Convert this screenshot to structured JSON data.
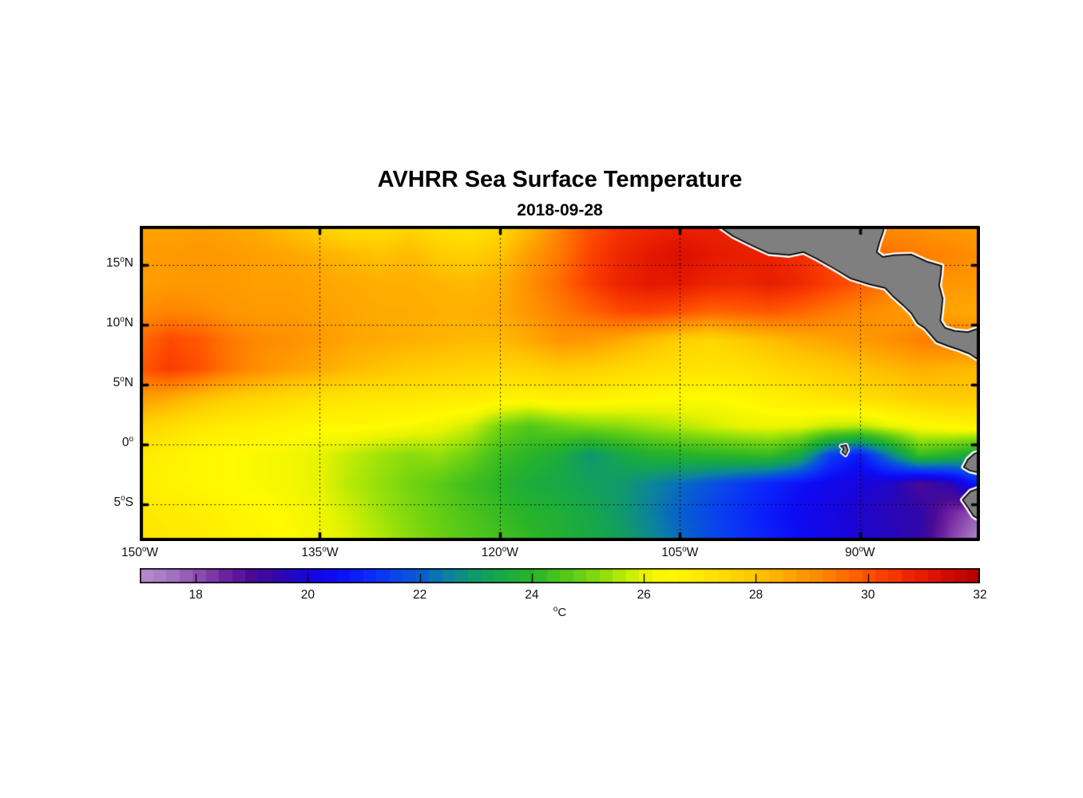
{
  "figure": {
    "title": "AVHRR Sea Surface Temperature",
    "subtitle": "2018-09-28"
  },
  "chart_data": {
    "type": "heatmap",
    "title": "AVHRR Sea Surface Temperature",
    "subtitle": "2018-09-28",
    "x_axis": {
      "range_lonW": [
        150,
        80
      ],
      "ticks": [
        {
          "deg": "150",
          "hem": "W",
          "lonW": 150
        },
        {
          "deg": "135",
          "hem": "W",
          "lonW": 135
        },
        {
          "deg": "120",
          "hem": "W",
          "lonW": 120
        },
        {
          "deg": "105",
          "hem": "W",
          "lonW": 105
        },
        {
          "deg": "90",
          "hem": "W",
          "lonW": 90
        }
      ]
    },
    "y_axis": {
      "range_lat": [
        -8.1,
        18.3
      ],
      "ticks": [
        {
          "deg": "15",
          "hem": "N",
          "lat": 15
        },
        {
          "deg": "10",
          "hem": "N",
          "lat": 10
        },
        {
          "deg": "5",
          "hem": "N",
          "lat": 5
        },
        {
          "deg": "0",
          "hem": "",
          "lat": 0
        },
        {
          "deg": "5",
          "hem": "S",
          "lat": -5
        }
      ]
    },
    "gridlines": {
      "lonW": [
        135,
        120,
        105,
        90
      ],
      "lat": [
        15,
        10,
        5,
        0,
        -5
      ]
    },
    "colorbar": {
      "min": 17,
      "max": 32,
      "levels": 64,
      "tick_values": [
        18,
        20,
        22,
        24,
        26,
        28,
        30,
        32
      ],
      "unit_sup": "o",
      "unit": "C",
      "stops": [
        [
          17.0,
          "#b78fce"
        ],
        [
          17.5,
          "#a678c4"
        ],
        [
          18.0,
          "#8e50b0"
        ],
        [
          18.5,
          "#6f22a0"
        ],
        [
          19.0,
          "#4a0a96"
        ],
        [
          19.5,
          "#2e07ae"
        ],
        [
          20.0,
          "#1805dc"
        ],
        [
          20.5,
          "#0d0bf4"
        ],
        [
          21.0,
          "#0a24fa"
        ],
        [
          21.5,
          "#0940f0"
        ],
        [
          22.0,
          "#085ed0"
        ],
        [
          22.5,
          "#0c82a0"
        ],
        [
          23.0,
          "#109a6a"
        ],
        [
          23.5,
          "#18aa42"
        ],
        [
          24.0,
          "#2ab428"
        ],
        [
          24.5,
          "#4cc41c"
        ],
        [
          25.0,
          "#74d410"
        ],
        [
          25.5,
          "#aae608"
        ],
        [
          26.0,
          "#e8f400"
        ],
        [
          26.4,
          "#fffa00"
        ],
        [
          27.0,
          "#ffe800"
        ],
        [
          27.5,
          "#ffd800"
        ],
        [
          28.0,
          "#ffc400"
        ],
        [
          28.5,
          "#ffaa00"
        ],
        [
          29.0,
          "#ff9000"
        ],
        [
          29.5,
          "#ff7200"
        ],
        [
          30.0,
          "#ff5000"
        ],
        [
          30.5,
          "#f53200"
        ],
        [
          31.0,
          "#e41800"
        ],
        [
          31.5,
          "#cc0800"
        ],
        [
          32.0,
          "#b20000"
        ]
      ]
    },
    "sst": {
      "units": "degC",
      "lonW_start": 150,
      "lonW_step": 2.5,
      "lat_start": 18.3,
      "lat_step": -2.4,
      "values": [
        [
          28.6,
          28.6,
          28.7,
          28.6,
          28.4,
          28.0,
          27.6,
          27.2,
          27.2,
          27.5,
          27.2,
          27.0,
          27.4,
          28.2,
          29.2,
          30.0,
          30.5,
          30.7,
          30.8,
          30.8,
          30.7,
          30.6,
          30.4,
          29.6,
          29.2,
          29.0,
          29.0,
          28.8,
          28.7
        ],
        [
          28.8,
          28.8,
          28.9,
          28.8,
          28.7,
          28.6,
          28.4,
          28.2,
          28.0,
          28.2,
          27.8,
          27.7,
          28.0,
          28.8,
          29.4,
          30.2,
          30.7,
          31.0,
          31.2,
          31.0,
          30.9,
          30.8,
          30.6,
          30.2,
          29.8,
          29.5,
          29.3,
          29.2,
          29.0
        ],
        [
          28.7,
          28.8,
          28.8,
          28.8,
          28.7,
          28.7,
          28.6,
          28.5,
          28.4,
          28.4,
          28.3,
          28.2,
          28.4,
          29.0,
          29.6,
          30.3,
          30.8,
          31.0,
          31.0,
          30.8,
          30.7,
          30.9,
          30.7,
          30.3,
          29.9,
          29.4,
          29.0,
          28.9,
          28.8
        ],
        [
          29.0,
          29.2,
          29.1,
          28.9,
          28.8,
          28.8,
          28.7,
          28.6,
          28.5,
          28.5,
          28.4,
          28.4,
          28.5,
          28.9,
          29.3,
          29.7,
          30.1,
          30.2,
          30.0,
          29.7,
          29.8,
          29.9,
          29.7,
          29.4,
          29.1,
          28.9,
          28.7,
          28.6,
          28.5
        ],
        [
          29.6,
          30.1,
          29.9,
          29.4,
          29.1,
          29.0,
          28.8,
          28.6,
          28.5,
          28.4,
          28.3,
          28.2,
          28.2,
          28.5,
          28.9,
          28.8,
          28.5,
          28.1,
          27.7,
          27.5,
          27.8,
          28.1,
          28.4,
          28.6,
          28.8,
          29.0,
          29.3,
          29.4,
          29.2
        ],
        [
          29.9,
          30.3,
          30.0,
          29.4,
          29.0,
          28.7,
          28.5,
          28.2,
          28.0,
          27.8,
          27.7,
          27.6,
          27.5,
          27.6,
          27.8,
          27.7,
          27.5,
          27.3,
          27.2,
          27.1,
          27.2,
          27.4,
          27.6,
          27.8,
          28.0,
          28.2,
          28.4,
          28.3,
          28.2
        ],
        [
          28.8,
          28.5,
          28.1,
          27.8,
          27.6,
          27.4,
          27.2,
          27.1,
          27.0,
          27.0,
          26.9,
          26.9,
          26.7,
          26.6,
          26.8,
          26.7,
          26.6,
          26.5,
          26.4,
          26.4,
          26.5,
          26.7,
          26.9,
          27.1,
          27.3,
          27.5,
          27.7,
          27.8,
          27.8
        ],
        [
          27.6,
          27.3,
          27.0,
          26.8,
          26.7,
          26.6,
          26.5,
          26.5,
          26.4,
          26.3,
          26.1,
          25.8,
          25.0,
          24.6,
          24.9,
          25.1,
          25.2,
          25.4,
          25.6,
          25.8,
          26.0,
          26.1,
          26.0,
          25.7,
          25.6,
          26.0,
          26.3,
          26.5,
          26.6
        ],
        [
          26.9,
          26.7,
          26.5,
          26.4,
          26.3,
          26.2,
          26.0,
          25.7,
          25.4,
          25.2,
          25.3,
          24.9,
          24.3,
          24.0,
          23.6,
          22.9,
          23.4,
          23.8,
          23.9,
          24.0,
          24.1,
          24.2,
          23.5,
          21.5,
          20.8,
          22.5,
          24.3,
          23.9,
          23.4
        ],
        [
          26.8,
          26.6,
          26.5,
          26.4,
          26.3,
          26.2,
          26.0,
          25.6,
          25.3,
          25.0,
          24.7,
          24.3,
          24.0,
          23.6,
          23.4,
          23.2,
          23.0,
          22.6,
          22.2,
          21.8,
          21.4,
          21.0,
          20.6,
          20.3,
          20.0,
          19.8,
          19.0,
          19.5,
          21.0
        ],
        [
          27.0,
          26.9,
          26.8,
          26.6,
          26.5,
          26.3,
          26.1,
          25.8,
          25.4,
          25.1,
          24.8,
          24.5,
          24.2,
          23.9,
          23.7,
          23.4,
          23.0,
          22.5,
          22.0,
          21.6,
          21.2,
          20.8,
          20.4,
          20.1,
          19.8,
          19.6,
          19.5,
          18.5,
          17.8
        ],
        [
          27.2,
          27.0,
          26.9,
          26.7,
          26.6,
          26.4,
          26.2,
          25.9,
          25.6,
          25.2,
          24.9,
          24.6,
          24.4,
          24.1,
          23.8,
          23.5,
          23.2,
          22.7,
          22.2,
          21.7,
          21.3,
          20.9,
          20.5,
          20.2,
          19.9,
          19.7,
          19.4,
          18.2,
          17.2
        ]
      ]
    },
    "land": {
      "fill": "#7f7f7f",
      "outline": "#000000",
      "fringe": "#ffffff",
      "polygons": {
        "central_america": [
          [
            102.0,
            18.45
          ],
          [
            100.6,
            17.45
          ],
          [
            99.2,
            16.75
          ],
          [
            97.6,
            16.0
          ],
          [
            95.9,
            15.85
          ],
          [
            94.7,
            16.1
          ],
          [
            93.6,
            15.55
          ],
          [
            92.2,
            14.75
          ],
          [
            90.8,
            13.9
          ],
          [
            89.2,
            13.4
          ],
          [
            87.9,
            13.1
          ],
          [
            87.3,
            12.45
          ],
          [
            86.4,
            11.65
          ],
          [
            85.7,
            10.95
          ],
          [
            85.2,
            10.15
          ],
          [
            84.6,
            9.75
          ],
          [
            83.6,
            8.6
          ],
          [
            82.7,
            8.25
          ],
          [
            81.8,
            7.95
          ],
          [
            80.9,
            7.6
          ],
          [
            80.3,
            7.2
          ],
          [
            79.6,
            7.1
          ],
          [
            79.6,
            9.9
          ],
          [
            81.0,
            9.4
          ],
          [
            82.1,
            9.5
          ],
          [
            82.9,
            9.75
          ],
          [
            83.3,
            10.35
          ],
          [
            83.2,
            11.2
          ],
          [
            83.1,
            12.2
          ],
          [
            83.4,
            13.3
          ],
          [
            83.25,
            14.3
          ],
          [
            83.2,
            14.95
          ],
          [
            84.4,
            15.3
          ],
          [
            85.7,
            15.9
          ],
          [
            87.1,
            15.85
          ],
          [
            88.1,
            15.7
          ],
          [
            88.6,
            16.1
          ],
          [
            88.35,
            17.0
          ],
          [
            88.1,
            17.7
          ],
          [
            87.9,
            18.45
          ]
        ],
        "south_america_north": [
          [
            79.6,
            -0.45
          ],
          [
            80.5,
            -0.8
          ],
          [
            81.0,
            -1.25
          ],
          [
            81.35,
            -1.9
          ],
          [
            80.85,
            -2.2
          ],
          [
            80.2,
            -2.35
          ],
          [
            79.6,
            -2.5
          ]
        ],
        "south_america_south": [
          [
            79.6,
            -3.5
          ],
          [
            80.8,
            -3.95
          ],
          [
            81.45,
            -4.65
          ],
          [
            81.0,
            -5.3
          ],
          [
            80.55,
            -6.0
          ],
          [
            79.6,
            -6.55
          ]
        ],
        "galapagos": [
          [
            91.6,
            -0.15
          ],
          [
            91.15,
            -0.05
          ],
          [
            91.0,
            -0.5
          ],
          [
            91.2,
            -0.9
          ],
          [
            91.5,
            -0.65
          ],
          [
            91.35,
            -0.4
          ]
        ]
      }
    }
  }
}
